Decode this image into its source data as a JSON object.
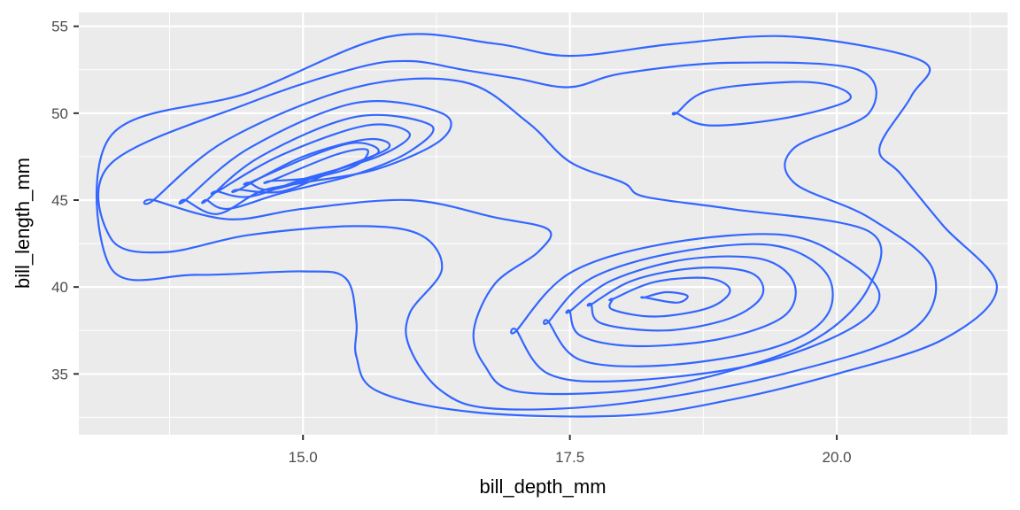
{
  "chart_data": {
    "type": "contour",
    "title": "",
    "xlabel": "bill_depth_mm",
    "ylabel": "bill_length_mm",
    "xlim": [
      12.9,
      21.6
    ],
    "ylim": [
      31.5,
      55.8
    ],
    "x_ticks": [
      15.0,
      17.5,
      20.0
    ],
    "x_tick_labels": [
      "15.0",
      "17.5",
      "20.0"
    ],
    "y_ticks": [
      35,
      40,
      45,
      50,
      55
    ],
    "y_tick_labels": [
      "35",
      "40",
      "45",
      "50",
      "55"
    ],
    "grid": true,
    "legend": "none",
    "colors": {
      "line": "#3366FF",
      "panel": "#EBEBEB",
      "grid": "#FFFFFF",
      "tick_label": "#4D4D4D",
      "axis_title": "#000000"
    },
    "contours": [
      {
        "name": "",
        "points": [
          [
            13.2,
            48.7
          ],
          [
            14.5,
            51.2
          ],
          [
            15.8,
            54.4
          ],
          [
            16.8,
            54.0
          ],
          [
            17.5,
            53.3
          ],
          [
            18.5,
            54.0
          ],
          [
            19.6,
            54.4
          ],
          [
            20.8,
            53.0
          ],
          [
            20.7,
            51.0
          ],
          [
            20.4,
            48.0
          ],
          [
            20.6,
            46.5
          ],
          [
            21.0,
            43.5
          ],
          [
            21.5,
            40.0
          ],
          [
            21.0,
            37.0
          ],
          [
            20.0,
            35.0
          ],
          [
            19.0,
            33.5
          ],
          [
            18.0,
            32.6
          ],
          [
            16.6,
            32.8
          ],
          [
            15.7,
            34.0
          ],
          [
            15.5,
            36.0
          ],
          [
            15.5,
            38.0
          ],
          [
            15.4,
            40.5
          ],
          [
            15.0,
            40.9
          ],
          [
            14.0,
            40.7
          ],
          [
            13.2,
            41.1
          ]
        ]
      },
      {
        "name": "",
        "points": [
          [
            13.2,
            47.1
          ],
          [
            14.5,
            50.6
          ],
          [
            15.5,
            52.6
          ],
          [
            16.0,
            53.0
          ],
          [
            16.5,
            52.5
          ],
          [
            17.0,
            52.0
          ],
          [
            17.5,
            51.5
          ],
          [
            18.0,
            52.3
          ],
          [
            19.0,
            52.9
          ],
          [
            20.2,
            52.5
          ],
          [
            20.3,
            50.0
          ],
          [
            19.6,
            48.0
          ],
          [
            19.6,
            46.0
          ],
          [
            20.3,
            44.0
          ],
          [
            20.9,
            41.0
          ],
          [
            20.7,
            37.5
          ],
          [
            19.5,
            35.0
          ],
          [
            18.0,
            33.3
          ],
          [
            16.8,
            33.0
          ],
          [
            16.3,
            34.0
          ],
          [
            16.0,
            36.5
          ],
          [
            16.0,
            38.5
          ],
          [
            16.3,
            41.0
          ],
          [
            16.1,
            43.0
          ],
          [
            15.5,
            43.5
          ],
          [
            14.5,
            43.0
          ],
          [
            13.7,
            42.0
          ],
          [
            13.2,
            42.8
          ]
        ]
      },
      {
        "name": "",
        "points": [
          [
            13.6,
            45.0
          ],
          [
            14.3,
            48.5
          ],
          [
            15.5,
            51.5
          ],
          [
            16.5,
            51.8
          ],
          [
            17.1,
            49.5
          ],
          [
            17.5,
            47.2
          ],
          [
            18.0,
            46.0
          ],
          [
            18.2,
            45.2
          ],
          [
            19.0,
            44.5
          ],
          [
            20.3,
            43.2
          ],
          [
            20.3,
            40.0
          ],
          [
            19.8,
            37.0
          ],
          [
            18.9,
            35.0
          ],
          [
            18.0,
            34.0
          ],
          [
            17.0,
            34.0
          ],
          [
            16.7,
            35.5
          ],
          [
            16.6,
            37.5
          ],
          [
            16.8,
            40.2
          ],
          [
            17.2,
            42.0
          ],
          [
            17.3,
            43.3
          ],
          [
            16.8,
            44.0
          ],
          [
            16.0,
            45.0
          ],
          [
            15.0,
            44.5
          ],
          [
            14.3,
            43.9
          ],
          [
            13.6,
            45.0
          ]
        ]
      },
      {
        "name": "",
        "points": [
          [
            13.9,
            45.0
          ],
          [
            14.5,
            48.0
          ],
          [
            15.5,
            50.6
          ],
          [
            16.3,
            50.0
          ],
          [
            16.3,
            48.5
          ],
          [
            15.7,
            46.8
          ],
          [
            15.0,
            46.0
          ],
          [
            14.6,
            45.5
          ],
          [
            14.2,
            44.2
          ],
          [
            13.9,
            45.0
          ]
        ]
      },
      {
        "name": "",
        "points": [
          [
            14.1,
            45.0
          ],
          [
            14.6,
            47.5
          ],
          [
            15.5,
            49.8
          ],
          [
            16.2,
            49.3
          ],
          [
            16.0,
            47.8
          ],
          [
            15.5,
            46.5
          ],
          [
            14.8,
            45.4
          ],
          [
            14.3,
            44.5
          ],
          [
            14.1,
            45.0
          ]
        ]
      },
      {
        "name": "",
        "points": [
          [
            14.2,
            45.5
          ],
          [
            14.8,
            47.6
          ],
          [
            15.6,
            49.3
          ],
          [
            16.0,
            48.8
          ],
          [
            15.7,
            47.5
          ],
          [
            15.0,
            46.2
          ],
          [
            14.5,
            45.2
          ],
          [
            14.2,
            45.5
          ]
        ]
      },
      {
        "name": "",
        "points": [
          [
            14.4,
            45.6
          ],
          [
            15.0,
            47.5
          ],
          [
            15.6,
            48.5
          ],
          [
            15.8,
            48.0
          ],
          [
            15.3,
            46.7
          ],
          [
            14.8,
            45.5
          ],
          [
            14.4,
            45.6
          ]
        ]
      },
      {
        "name": "",
        "points": [
          [
            14.5,
            46.0
          ],
          [
            15.1,
            47.6
          ],
          [
            15.5,
            48.3
          ],
          [
            15.7,
            47.7
          ],
          [
            15.2,
            46.5
          ],
          [
            14.7,
            45.6
          ],
          [
            14.5,
            46.0
          ]
        ]
      },
      {
        "name": "",
        "points": [
          [
            14.7,
            46.1
          ],
          [
            15.3,
            47.6
          ],
          [
            15.6,
            47.9
          ],
          [
            15.5,
            47.0
          ],
          [
            15.1,
            46.3
          ],
          [
            14.7,
            46.1
          ]
        ]
      },
      {
        "name": "",
        "points": [
          [
            18.5,
            50.0
          ],
          [
            18.8,
            51.3
          ],
          [
            19.6,
            51.8
          ],
          [
            20.0,
            51.5
          ],
          [
            20.1,
            50.7
          ],
          [
            19.5,
            49.7
          ],
          [
            18.8,
            49.3
          ],
          [
            18.5,
            50.0
          ]
        ]
      },
      {
        "name": "",
        "points": [
          [
            17.0,
            37.5
          ],
          [
            17.5,
            40.8
          ],
          [
            18.4,
            42.5
          ],
          [
            19.5,
            43.0
          ],
          [
            20.1,
            41.5
          ],
          [
            20.4,
            39.5
          ],
          [
            20.1,
            37.5
          ],
          [
            19.2,
            35.5
          ],
          [
            18.0,
            34.6
          ],
          [
            17.3,
            35.0
          ],
          [
            17.0,
            37.5
          ]
        ]
      },
      {
        "name": "",
        "points": [
          [
            17.3,
            38.0
          ],
          [
            17.7,
            40.5
          ],
          [
            18.5,
            42.0
          ],
          [
            19.4,
            42.4
          ],
          [
            19.9,
            40.8
          ],
          [
            19.9,
            38.3
          ],
          [
            19.4,
            36.5
          ],
          [
            18.4,
            35.5
          ],
          [
            17.6,
            35.8
          ],
          [
            17.3,
            38.0
          ]
        ]
      },
      {
        "name": "",
        "points": [
          [
            17.5,
            38.6
          ],
          [
            17.9,
            40.4
          ],
          [
            18.6,
            41.6
          ],
          [
            19.3,
            41.6
          ],
          [
            19.6,
            40.2
          ],
          [
            19.5,
            38.3
          ],
          [
            18.9,
            37.0
          ],
          [
            18.1,
            36.6
          ],
          [
            17.6,
            37.2
          ],
          [
            17.5,
            38.6
          ]
        ]
      },
      {
        "name": "",
        "points": [
          [
            17.7,
            39.0
          ],
          [
            18.1,
            40.4
          ],
          [
            18.7,
            41.1
          ],
          [
            19.2,
            40.8
          ],
          [
            19.3,
            39.5
          ],
          [
            19.0,
            38.2
          ],
          [
            18.4,
            37.5
          ],
          [
            17.8,
            37.9
          ],
          [
            17.7,
            39.0
          ]
        ]
      },
      {
        "name": "",
        "points": [
          [
            17.9,
            39.3
          ],
          [
            18.3,
            40.3
          ],
          [
            18.8,
            40.5
          ],
          [
            19.0,
            39.8
          ],
          [
            18.8,
            38.8
          ],
          [
            18.3,
            38.3
          ],
          [
            17.9,
            38.7
          ],
          [
            17.9,
            39.3
          ]
        ]
      },
      {
        "name": "",
        "points": [
          [
            18.2,
            39.4
          ],
          [
            18.4,
            39.7
          ],
          [
            18.6,
            39.5
          ],
          [
            18.5,
            39.1
          ],
          [
            18.2,
            39.4
          ]
        ]
      }
    ]
  }
}
